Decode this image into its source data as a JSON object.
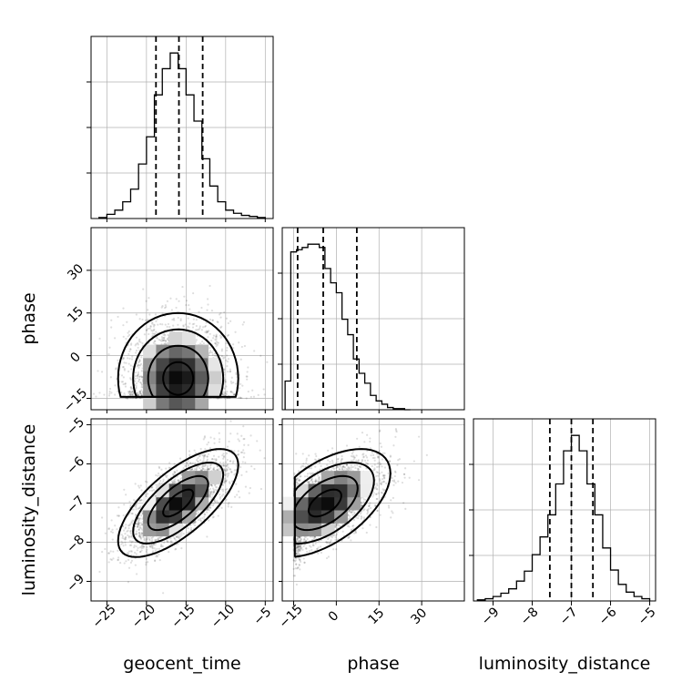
{
  "chart_data": {
    "type": "corner",
    "parameters": [
      "geocent_time",
      "phase",
      "luminosity_distance"
    ],
    "grid": true,
    "ranges": {
      "geocent_time": [
        -27,
        -4
      ],
      "phase": [
        -19,
        45
      ],
      "luminosity_distance": [
        -9.5,
        -4.85
      ]
    },
    "ticks": {
      "geocent_time": [
        -25,
        -20,
        -15,
        -10,
        -5
      ],
      "phase": [
        -15,
        0,
        15,
        30
      ],
      "luminosity_distance": [
        -9,
        -8,
        -7,
        -6,
        -5
      ]
    },
    "tick_labels": {
      "geocent_time": [
        "−25",
        "−20",
        "−15",
        "−10",
        "−5"
      ],
      "phase": [
        "−15",
        "0",
        "15",
        "30"
      ],
      "luminosity_distance": [
        "−9",
        "−8",
        "−7",
        "−6",
        "−5"
      ]
    },
    "histograms": [
      {
        "parameter": "geocent_time",
        "bin_edges": [
          -26,
          -25,
          -24,
          -23,
          -22,
          -21,
          -20,
          -19,
          -18,
          -17,
          -16,
          -15,
          -14,
          -13,
          -12,
          -11,
          -10,
          -9,
          -8,
          -7,
          -6,
          -5
        ],
        "counts": [
          1,
          4,
          8,
          16,
          28,
          52,
          78,
          118,
          143,
          158,
          143,
          118,
          93,
          57,
          31,
          16,
          8,
          5,
          3,
          2,
          1
        ],
        "quantiles": [
          -18.8,
          -15.9,
          -12.9
        ]
      },
      {
        "parameter": "phase",
        "bin_edges": [
          -18,
          -16,
          -14,
          -12,
          -10,
          -8,
          -6,
          -4,
          -2,
          0,
          2,
          4,
          6,
          8,
          10,
          12,
          14,
          16,
          18,
          20,
          22,
          24,
          26
        ],
        "counts": [
          26,
          143,
          145,
          147,
          150,
          150,
          147,
          128,
          115,
          106,
          82,
          68,
          46,
          33,
          24,
          13,
          8,
          5,
          2,
          1,
          1,
          0
        ],
        "quantiles": [
          -13.6,
          -4.6,
          7.2
        ]
      },
      {
        "parameter": "luminosity_distance",
        "bin_edges": [
          -9.4,
          -9.2,
          -9.0,
          -8.8,
          -8.6,
          -8.4,
          -8.2,
          -8.0,
          -7.8,
          -7.6,
          -7.4,
          -7.2,
          -7.0,
          -6.8,
          -6.6,
          -6.4,
          -6.2,
          -6.0,
          -5.8,
          -5.6,
          -5.4,
          -5.2,
          -5.0
        ],
        "counts": [
          1,
          2,
          4,
          7,
          11,
          18,
          27,
          42,
          58,
          78,
          106,
          136,
          150,
          136,
          106,
          78,
          48,
          28,
          15,
          8,
          4,
          2
        ],
        "quantiles": [
          -7.55,
          -7.0,
          -6.45
        ]
      }
    ],
    "pairs": [
      {
        "x": "geocent_time",
        "y": "phase",
        "correlation": 0,
        "center": [
          -16,
          -8
        ],
        "sigma": [
          3.3,
          10
        ],
        "floor": -15
      },
      {
        "x": "geocent_time",
        "y": "luminosity_distance",
        "correlation": 0.7,
        "center": [
          -16,
          -7
        ],
        "sigma": [
          3.3,
          0.6
        ]
      },
      {
        "x": "phase",
        "y": "luminosity_distance",
        "correlation": 0.55,
        "center": [
          -4,
          -7
        ],
        "sigma": [
          10,
          0.6
        ],
        "floor_x": -15
      }
    ],
    "contour_levels_sigma": [
      0.5,
      1.0,
      1.5,
      2.0
    ]
  }
}
